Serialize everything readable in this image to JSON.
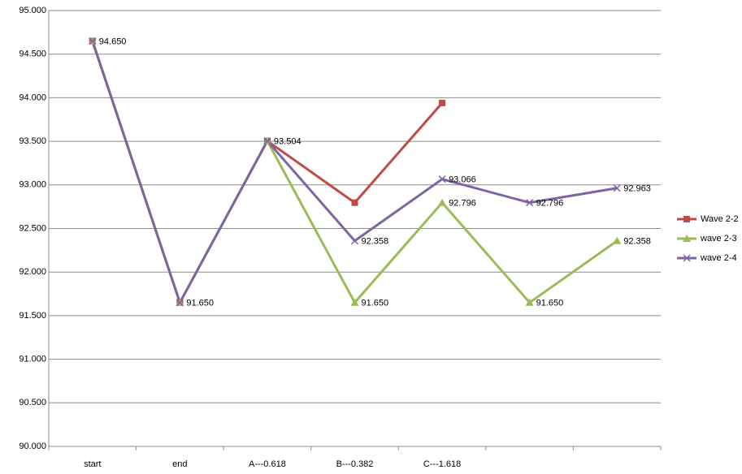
{
  "chart_data": {
    "type": "line",
    "categories": [
      "start",
      "end",
      "A---0.618",
      "B---0.382",
      "C---1.618",
      null,
      null
    ],
    "ylim": [
      90,
      95
    ],
    "yticks": [
      {
        "value": 90,
        "label": "90.000"
      },
      {
        "value": 90.5,
        "label": "90.500"
      },
      {
        "value": 91,
        "label": "91.000"
      },
      {
        "value": 91.5,
        "label": "91.500"
      },
      {
        "value": 92,
        "label": "92.000"
      },
      {
        "value": 92.5,
        "label": "92.500"
      },
      {
        "value": 93,
        "label": "93.000"
      },
      {
        "value": 93.5,
        "label": "93.500"
      },
      {
        "value": 94,
        "label": "94.000"
      },
      {
        "value": 94.5,
        "label": "94.500"
      },
      {
        "value": 95,
        "label": "95.000"
      }
    ],
    "grid": true,
    "legend": "right",
    "series": [
      {
        "name": "Wave 2-2",
        "color": "#be4b48",
        "marker": "square",
        "values": [
          94.65,
          91.65,
          93.504,
          92.796,
          93.94,
          null,
          null
        ]
      },
      {
        "name": "wave 2-3",
        "color": "#9bbb59",
        "marker": "triangle",
        "values": [
          94.65,
          91.65,
          93.504,
          91.65,
          92.796,
          91.65,
          92.358
        ],
        "value_labels": [
          null,
          null,
          null,
          "91.650",
          "92.796",
          "91.650",
          "92.358"
        ]
      },
      {
        "name": "wave 2-4",
        "color": "#7f64a2",
        "marker": "x",
        "values": [
          94.65,
          91.65,
          93.504,
          92.358,
          93.066,
          92.796,
          92.963
        ],
        "value_labels": [
          "94.650",
          "91.650",
          "93.504",
          "92.358",
          "93.066",
          "92.796",
          "92.963"
        ]
      }
    ]
  }
}
